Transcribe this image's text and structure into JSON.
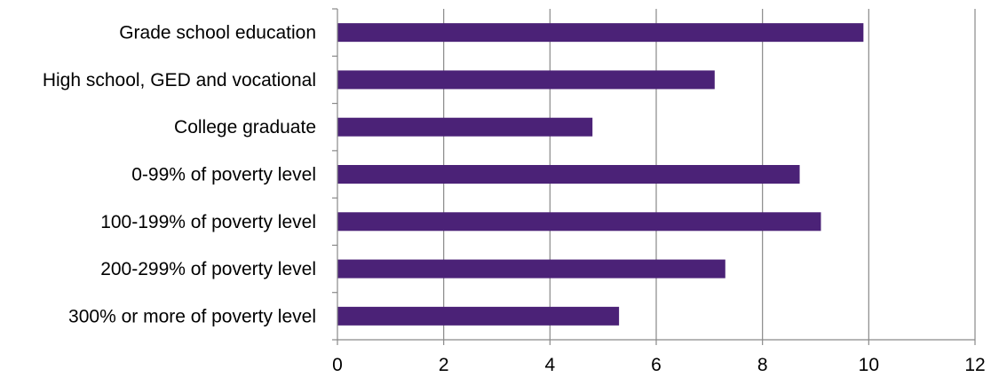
{
  "chart_data": {
    "type": "bar",
    "orientation": "horizontal",
    "title": "",
    "xlabel": "",
    "ylabel": "",
    "categories": [
      "Grade school education",
      "High school, GED and vocational",
      "College graduate",
      "0-99% of poverty level",
      "100-199% of poverty level",
      "200-299% of poverty level",
      "300% or more of poverty level"
    ],
    "values": [
      9.9,
      7.1,
      4.8,
      8.7,
      9.1,
      7.3,
      5.3
    ],
    "xlim": [
      0,
      12
    ],
    "x_ticks": [
      "0",
      "2",
      "4",
      "6",
      "8",
      "10",
      "12"
    ],
    "grid": true,
    "legend": "none",
    "colors": {
      "bar": "#4B2277",
      "grid": "#898989",
      "axis": "#898989"
    }
  }
}
